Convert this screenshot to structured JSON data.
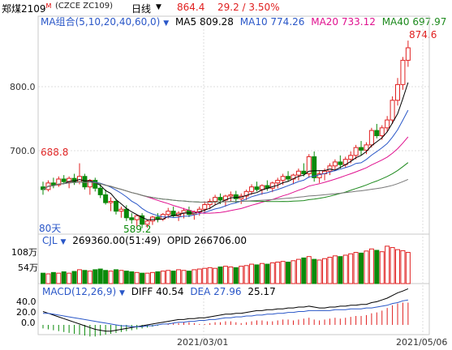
{
  "header": {
    "instrument": "郑煤2109",
    "superscript": "M",
    "code": "(CZCE ZC109)",
    "period": "日线",
    "price": "864.4",
    "change": "29.2 / 3.50%"
  },
  "ma_bar": {
    "label": "MA组合(5,10,20,40,60,0)",
    "ma5": "MA5 809.28",
    "ma10": "MA10 774.26",
    "ma20": "MA20 733.12",
    "ma40": "MA40 697.97",
    "colors": {
      "ma5": "#000000",
      "ma10": "#2a57c8",
      "ma20": "#e0118f",
      "ma40": "#1d8a1d",
      "ma60": "#777777"
    }
  },
  "main": {
    "yticks": [
      "800.0",
      "700.0"
    ],
    "high_label": "874.6",
    "left_label": "688.8",
    "low_label": "589.2",
    "days_label": "80天"
  },
  "volume": {
    "label": "CJL",
    "vol": "269360.00(51:49)",
    "opi": "OPID 266706.00",
    "yticks": [
      "108万",
      "54万"
    ]
  },
  "macd": {
    "label": "MACD(12,26,9)",
    "diff": "DIFF 40.54",
    "dea": "DEA 27.96",
    "macd": "25.17",
    "yticks": [
      "40.0",
      "20.0",
      "0.0"
    ]
  },
  "xaxis": {
    "labels": [
      "2021/03/01",
      "2021/05/06"
    ]
  },
  "colors": {
    "up": "#e02020",
    "down": "#0a8a0a",
    "grid": "#c9c9c9"
  },
  "chart_data": {
    "type": "candlestick",
    "ylim": [
      580,
      885
    ],
    "candles": [
      [
        652,
        660,
        640,
        648
      ],
      [
        648,
        662,
        645,
        658
      ],
      [
        658,
        666,
        650,
        655
      ],
      [
        655,
        668,
        652,
        664
      ],
      [
        664,
        670,
        656,
        660
      ],
      [
        660,
        668,
        650,
        665
      ],
      [
        665,
        672,
        655,
        660
      ],
      [
        660,
        688,
        656,
        668
      ],
      [
        668,
        672,
        648,
        652
      ],
      [
        652,
        664,
        640,
        662
      ],
      [
        662,
        666,
        645,
        650
      ],
      [
        650,
        658,
        635,
        640
      ],
      [
        640,
        648,
        625,
        628
      ],
      [
        628,
        636,
        615,
        630
      ],
      [
        630,
        634,
        610,
        615
      ],
      [
        615,
        622,
        605,
        618
      ],
      [
        618,
        624,
        600,
        605
      ],
      [
        605,
        612,
        596,
        602
      ],
      [
        602,
        610,
        592,
        608
      ],
      [
        608,
        612,
        589,
        595
      ],
      [
        595,
        602,
        590,
        600
      ],
      [
        600,
        608,
        594,
        606
      ],
      [
        606,
        612,
        598,
        603
      ],
      [
        603,
        612,
        600,
        610
      ],
      [
        610,
        620,
        604,
        615
      ],
      [
        615,
        622,
        606,
        608
      ],
      [
        608,
        615,
        600,
        612
      ],
      [
        612,
        620,
        604,
        616
      ],
      [
        616,
        622,
        606,
        610
      ],
      [
        610,
        616,
        602,
        614
      ],
      [
        614,
        622,
        608,
        618
      ],
      [
        618,
        630,
        612,
        625
      ],
      [
        625,
        634,
        618,
        630
      ],
      [
        630,
        640,
        624,
        636
      ],
      [
        636,
        642,
        626,
        632
      ],
      [
        632,
        640,
        622,
        638
      ],
      [
        638,
        645,
        630,
        640
      ],
      [
        640,
        646,
        628,
        634
      ],
      [
        634,
        642,
        626,
        638
      ],
      [
        638,
        648,
        632,
        645
      ],
      [
        645,
        656,
        640,
        652
      ],
      [
        652,
        660,
        645,
        648
      ],
      [
        648,
        656,
        640,
        654
      ],
      [
        654,
        662,
        646,
        650
      ],
      [
        650,
        660,
        644,
        658
      ],
      [
        658,
        666,
        650,
        662
      ],
      [
        662,
        672,
        655,
        668
      ],
      [
        668,
        676,
        660,
        664
      ],
      [
        664,
        672,
        656,
        670
      ],
      [
        670,
        680,
        662,
        676
      ],
      [
        676,
        688,
        668,
        672
      ],
      [
        672,
        702,
        666,
        698
      ],
      [
        698,
        706,
        660,
        666
      ],
      [
        666,
        676,
        658,
        672
      ],
      [
        672,
        680,
        662,
        676
      ],
      [
        676,
        688,
        670,
        684
      ],
      [
        684,
        694,
        676,
        690
      ],
      [
        690,
        700,
        680,
        686
      ],
      [
        686,
        698,
        682,
        694
      ],
      [
        694,
        706,
        688,
        700
      ],
      [
        700,
        716,
        694,
        712
      ],
      [
        712,
        722,
        700,
        708
      ],
      [
        708,
        720,
        702,
        716
      ],
      [
        716,
        742,
        712,
        738
      ],
      [
        738,
        748,
        726,
        730
      ],
      [
        730,
        746,
        724,
        742
      ],
      [
        742,
        760,
        736,
        754
      ],
      [
        754,
        790,
        748,
        784
      ],
      [
        784,
        818,
        776,
        808
      ],
      [
        808,
        850,
        800,
        845
      ],
      [
        845,
        875,
        835,
        864
      ]
    ],
    "volume": [
      30,
      28,
      32,
      30,
      34,
      30,
      35,
      40,
      38,
      36,
      40,
      42,
      38,
      36,
      40,
      38,
      36,
      34,
      32,
      30,
      30,
      32,
      34,
      36,
      38,
      36,
      40,
      38,
      36,
      40,
      42,
      44,
      46,
      44,
      48,
      50,
      48,
      46,
      50,
      52,
      56,
      54,
      58,
      56,
      60,
      62,
      64,
      62,
      66,
      70,
      74,
      78,
      70,
      68,
      72,
      76,
      80,
      78,
      82,
      86,
      90,
      88,
      94,
      100,
      96,
      92,
      108,
      104,
      98,
      95,
      90
    ],
    "macd_hist": [
      -4,
      -5,
      -6,
      -7,
      -8,
      -9,
      -10,
      -11,
      -12,
      -13,
      -13,
      -12,
      -11,
      -10,
      -9,
      -8,
      -7,
      -6,
      -5,
      -4,
      -3,
      -2,
      -1,
      0,
      1,
      2,
      2,
      3,
      3,
      2,
      1,
      1,
      2,
      3,
      3,
      4,
      4,
      3,
      2,
      3,
      4,
      5,
      5,
      4,
      4,
      5,
      6,
      6,
      5,
      6,
      7,
      8,
      6,
      5,
      6,
      7,
      8,
      7,
      8,
      9,
      10,
      10,
      11,
      13,
      14,
      16,
      19,
      22,
      24,
      25,
      25
    ],
    "diff": [
      15,
      13,
      11,
      9,
      7,
      5,
      3,
      1,
      -1,
      -3,
      -5,
      -6,
      -7,
      -7,
      -6,
      -5,
      -4,
      -3,
      -2,
      -1,
      0,
      1,
      2,
      3,
      4,
      5,
      6,
      6,
      7,
      7,
      8,
      8,
      9,
      10,
      11,
      12,
      12,
      13,
      13,
      14,
      15,
      16,
      16,
      17,
      17,
      18,
      18,
      19,
      19,
      20,
      20,
      21,
      20,
      19,
      19,
      20,
      20,
      21,
      21,
      22,
      22,
      23,
      23,
      25,
      26,
      28,
      30,
      33,
      36,
      38,
      40.5
    ],
    "dea": [
      13,
      13,
      12,
      11,
      10,
      9,
      8,
      7,
      6,
      5,
      4,
      3,
      2,
      1,
      0,
      -1,
      -1,
      -2,
      -2,
      -2,
      -1,
      -1,
      0,
      1,
      1,
      2,
      3,
      3,
      4,
      4,
      5,
      5,
      6,
      6,
      7,
      8,
      8,
      9,
      9,
      10,
      10,
      11,
      11,
      12,
      12,
      13,
      13,
      14,
      14,
      15,
      15,
      16,
      16,
      16,
      16,
      16,
      17,
      17,
      17,
      18,
      18,
      18,
      19,
      19,
      20,
      21,
      22,
      24,
      25,
      27,
      28
    ]
  }
}
